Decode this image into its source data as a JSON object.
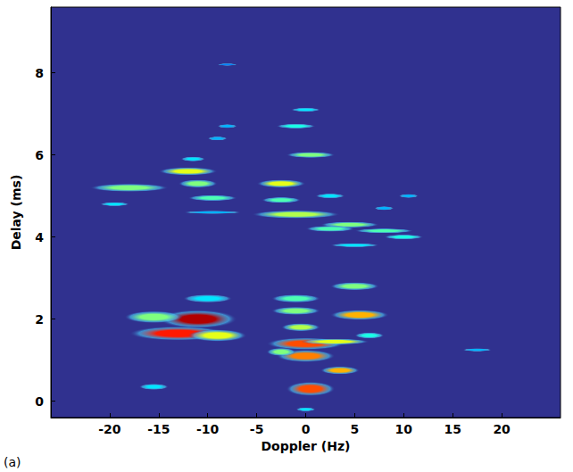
{
  "chart_data": {
    "type": "heatmap",
    "x_label": "Doppler (Hz)",
    "y_label": "Delay (ms)",
    "panel_label": "(a)",
    "xlim": [
      -26,
      26
    ],
    "xticks": [
      -20,
      -15,
      -10,
      -5,
      0,
      5,
      10,
      15,
      20
    ],
    "ylim": [
      -0.4,
      9.6
    ],
    "yticks": [
      0,
      2,
      4,
      6,
      8
    ],
    "grid": false,
    "value_range": [
      0,
      1
    ],
    "blobs": [
      {
        "doppler": -11,
        "delay": 2.0,
        "width": 8,
        "height": 0.45,
        "level": 0.95
      },
      {
        "doppler": -13,
        "delay": 1.65,
        "width": 10,
        "height": 0.35,
        "level": 0.85
      },
      {
        "doppler": -15.5,
        "delay": 2.05,
        "width": 6,
        "height": 0.3,
        "level": 0.5
      },
      {
        "doppler": -9,
        "delay": 1.6,
        "width": 6,
        "height": 0.3,
        "level": 0.6
      },
      {
        "doppler": -10,
        "delay": 2.5,
        "width": 5,
        "height": 0.2,
        "level": 0.35
      },
      {
        "doppler": -15.5,
        "delay": 0.35,
        "width": 3,
        "height": 0.15,
        "level": 0.35
      },
      {
        "doppler": 0.5,
        "delay": 0.3,
        "width": 5,
        "height": 0.35,
        "level": 0.8
      },
      {
        "doppler": 0,
        "delay": 1.1,
        "width": 6,
        "height": 0.3,
        "level": 0.75
      },
      {
        "doppler": 0,
        "delay": 1.4,
        "width": 8,
        "height": 0.3,
        "level": 0.8
      },
      {
        "doppler": 3.5,
        "delay": 0.75,
        "width": 4,
        "height": 0.2,
        "level": 0.7
      },
      {
        "doppler": -0.5,
        "delay": 1.8,
        "width": 4,
        "height": 0.2,
        "level": 0.55
      },
      {
        "doppler": -1,
        "delay": 2.2,
        "width": 5,
        "height": 0.2,
        "level": 0.5
      },
      {
        "doppler": -1,
        "delay": 2.5,
        "width": 5,
        "height": 0.2,
        "level": 0.45
      },
      {
        "doppler": 5.5,
        "delay": 2.1,
        "width": 6,
        "height": 0.25,
        "level": 0.7
      },
      {
        "doppler": 5,
        "delay": 2.8,
        "width": 5,
        "height": 0.2,
        "level": 0.5
      },
      {
        "doppler": 3,
        "delay": 1.45,
        "width": 7,
        "height": 0.15,
        "level": 0.6
      },
      {
        "doppler": 6.5,
        "delay": 1.6,
        "width": 3,
        "height": 0.15,
        "level": 0.4
      },
      {
        "doppler": 0,
        "delay": -0.2,
        "width": 2,
        "height": 0.1,
        "level": 0.35
      },
      {
        "doppler": -2.5,
        "delay": 1.2,
        "width": 3,
        "height": 0.2,
        "level": 0.5
      },
      {
        "doppler": -12,
        "delay": 5.6,
        "width": 6,
        "height": 0.2,
        "level": 0.6
      },
      {
        "doppler": -11,
        "delay": 5.3,
        "width": 4,
        "height": 0.2,
        "level": 0.5
      },
      {
        "doppler": -18,
        "delay": 5.2,
        "width": 8,
        "height": 0.2,
        "level": 0.5
      },
      {
        "doppler": -9.5,
        "delay": 4.95,
        "width": 5,
        "height": 0.15,
        "level": 0.45
      },
      {
        "doppler": -19.5,
        "delay": 4.8,
        "width": 3,
        "height": 0.1,
        "level": 0.35
      },
      {
        "doppler": -11.5,
        "delay": 5.9,
        "width": 2.5,
        "height": 0.12,
        "level": 0.35
      },
      {
        "doppler": -9,
        "delay": 6.4,
        "width": 2,
        "height": 0.1,
        "level": 0.3
      },
      {
        "doppler": -8,
        "delay": 6.7,
        "width": 2,
        "height": 0.1,
        "level": 0.3
      },
      {
        "doppler": -9.5,
        "delay": 4.6,
        "width": 6,
        "height": 0.08,
        "level": 0.3
      },
      {
        "doppler": -2.5,
        "delay": 5.3,
        "width": 5,
        "height": 0.2,
        "level": 0.6
      },
      {
        "doppler": -2.5,
        "delay": 4.9,
        "width": 4,
        "height": 0.15,
        "level": 0.45
      },
      {
        "doppler": -1,
        "delay": 4.55,
        "width": 9,
        "height": 0.2,
        "level": 0.55
      },
      {
        "doppler": 0.5,
        "delay": 6.0,
        "width": 5,
        "height": 0.15,
        "level": 0.5
      },
      {
        "doppler": -1,
        "delay": 6.7,
        "width": 4,
        "height": 0.12,
        "level": 0.4
      },
      {
        "doppler": 0,
        "delay": 7.1,
        "width": 3,
        "height": 0.1,
        "level": 0.35
      },
      {
        "doppler": 2.5,
        "delay": 5.0,
        "width": 3,
        "height": 0.12,
        "level": 0.35
      },
      {
        "doppler": 4.5,
        "delay": 4.3,
        "width": 6,
        "height": 0.15,
        "level": 0.5
      },
      {
        "doppler": 2.5,
        "delay": 4.2,
        "width": 5,
        "height": 0.15,
        "level": 0.45
      },
      {
        "doppler": 8,
        "delay": 4.15,
        "width": 6,
        "height": 0.12,
        "level": 0.45
      },
      {
        "doppler": 10,
        "delay": 4.0,
        "width": 4,
        "height": 0.12,
        "level": 0.4
      },
      {
        "doppler": 5,
        "delay": 3.8,
        "width": 5,
        "height": 0.1,
        "level": 0.35
      },
      {
        "doppler": 8,
        "delay": 4.7,
        "width": 2,
        "height": 0.1,
        "level": 0.3
      },
      {
        "doppler": 10.5,
        "delay": 5.0,
        "width": 2,
        "height": 0.1,
        "level": 0.3
      },
      {
        "doppler": 17.5,
        "delay": 1.25,
        "width": 3,
        "height": 0.08,
        "level": 0.3
      },
      {
        "doppler": -8,
        "delay": 8.2,
        "width": 2,
        "height": 0.06,
        "level": 0.25
      }
    ]
  }
}
